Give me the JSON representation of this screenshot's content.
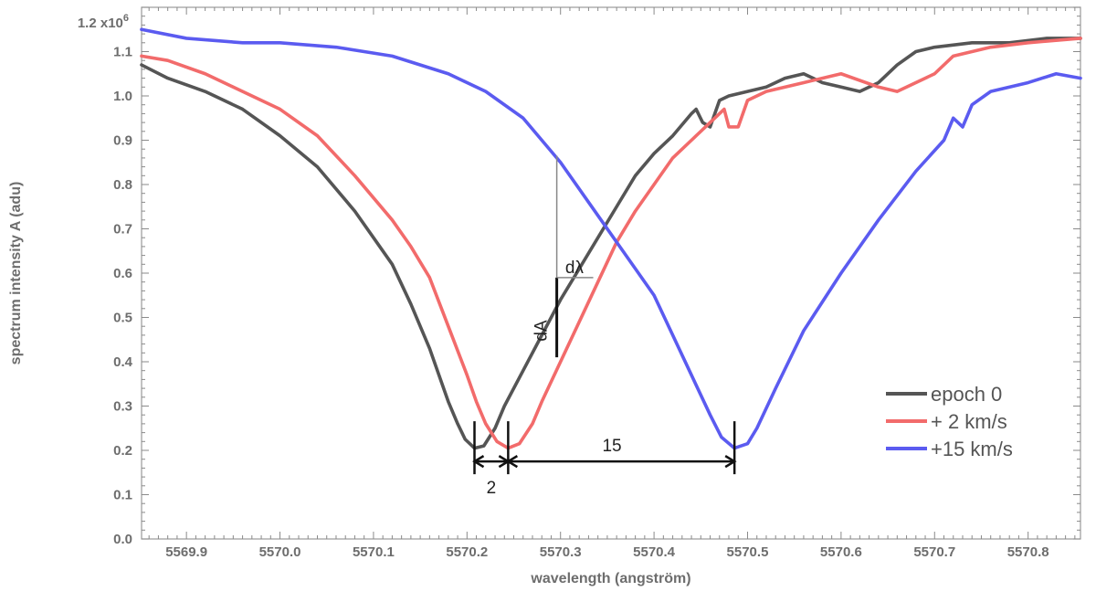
{
  "chart_data": {
    "type": "line",
    "title": "",
    "xlabel": "wavelength (angström)",
    "ylabel": "spectrum intensity A (adu)",
    "xlim": [
      5569.852,
      5570.856
    ],
    "ylim": [
      0,
      1.2
    ],
    "x_ticks": [
      5569.9,
      5570.0,
      5570.1,
      5570.2,
      5570.3,
      5570.4,
      5570.5,
      5570.6,
      5570.7,
      5570.8
    ],
    "x_tick_labels": [
      "5569.9",
      "5570.0",
      "5570.1",
      "5570.2",
      "5570.3",
      "5570.4",
      "5570.5",
      "5570.6",
      "5570.7",
      "5570.8"
    ],
    "y_ticks": [
      0,
      0.1,
      0.2,
      0.3,
      0.4,
      0.5,
      0.6,
      0.7,
      0.8,
      0.9,
      1.0,
      1.1
    ],
    "y_tick_labels": [
      "0.0",
      "0.1",
      "0.2",
      "0.3",
      "0.4",
      "0.5",
      "0.6",
      "0.7",
      "0.8",
      "0.9",
      "1.0",
      "1.1"
    ],
    "y_top_label": {
      "base": "1.2 x10",
      "exp": "6",
      "value": 1.2
    },
    "grid": false,
    "legend_position": "bottom-right",
    "series": [
      {
        "name": "epoch 0",
        "color": "#555555",
        "points": [
          [
            5569.852,
            1.07
          ],
          [
            5569.88,
            1.04
          ],
          [
            5569.92,
            1.01
          ],
          [
            5569.96,
            0.97
          ],
          [
            5570.0,
            0.91
          ],
          [
            5570.04,
            0.84
          ],
          [
            5570.08,
            0.74
          ],
          [
            5570.1,
            0.68
          ],
          [
            5570.12,
            0.62
          ],
          [
            5570.14,
            0.53
          ],
          [
            5570.16,
            0.43
          ],
          [
            5570.17,
            0.37
          ],
          [
            5570.18,
            0.31
          ],
          [
            5570.19,
            0.26
          ],
          [
            5570.198,
            0.225
          ],
          [
            5570.208,
            0.205
          ],
          [
            5570.218,
            0.21
          ],
          [
            5570.23,
            0.25
          ],
          [
            5570.24,
            0.3
          ],
          [
            5570.26,
            0.38
          ],
          [
            5570.28,
            0.46
          ],
          [
            5570.3,
            0.54
          ],
          [
            5570.32,
            0.61
          ],
          [
            5570.34,
            0.68
          ],
          [
            5570.36,
            0.75
          ],
          [
            5570.38,
            0.82
          ],
          [
            5570.4,
            0.87
          ],
          [
            5570.42,
            0.91
          ],
          [
            5570.44,
            0.96
          ],
          [
            5570.445,
            0.97
          ],
          [
            5570.452,
            0.94
          ],
          [
            5570.46,
            0.93
          ],
          [
            5570.47,
            0.99
          ],
          [
            5570.48,
            1.0
          ],
          [
            5570.5,
            1.01
          ],
          [
            5570.52,
            1.02
          ],
          [
            5570.54,
            1.04
          ],
          [
            5570.56,
            1.05
          ],
          [
            5570.58,
            1.03
          ],
          [
            5570.6,
            1.02
          ],
          [
            5570.62,
            1.01
          ],
          [
            5570.64,
            1.03
          ],
          [
            5570.66,
            1.07
          ],
          [
            5570.68,
            1.1
          ],
          [
            5570.7,
            1.11
          ],
          [
            5570.74,
            1.12
          ],
          [
            5570.78,
            1.12
          ],
          [
            5570.82,
            1.13
          ],
          [
            5570.856,
            1.13
          ]
        ]
      },
      {
        "name": "+  2 km/s",
        "color": "#f26b6b",
        "points": [
          [
            5569.852,
            1.09
          ],
          [
            5569.88,
            1.08
          ],
          [
            5569.92,
            1.05
          ],
          [
            5569.96,
            1.01
          ],
          [
            5570.0,
            0.97
          ],
          [
            5570.04,
            0.91
          ],
          [
            5570.08,
            0.82
          ],
          [
            5570.12,
            0.72
          ],
          [
            5570.14,
            0.66
          ],
          [
            5570.16,
            0.59
          ],
          [
            5570.18,
            0.48
          ],
          [
            5570.2,
            0.37
          ],
          [
            5570.21,
            0.31
          ],
          [
            5570.22,
            0.26
          ],
          [
            5570.232,
            0.22
          ],
          [
            5570.244,
            0.205
          ],
          [
            5570.256,
            0.215
          ],
          [
            5570.27,
            0.26
          ],
          [
            5570.28,
            0.31
          ],
          [
            5570.3,
            0.4
          ],
          [
            5570.32,
            0.49
          ],
          [
            5570.34,
            0.58
          ],
          [
            5570.36,
            0.67
          ],
          [
            5570.38,
            0.74
          ],
          [
            5570.4,
            0.8
          ],
          [
            5570.42,
            0.86
          ],
          [
            5570.44,
            0.9
          ],
          [
            5570.46,
            0.94
          ],
          [
            5570.475,
            0.97
          ],
          [
            5570.48,
            0.93
          ],
          [
            5570.49,
            0.93
          ],
          [
            5570.5,
            0.99
          ],
          [
            5570.52,
            1.01
          ],
          [
            5570.56,
            1.03
          ],
          [
            5570.6,
            1.05
          ],
          [
            5570.64,
            1.02
          ],
          [
            5570.66,
            1.01
          ],
          [
            5570.7,
            1.05
          ],
          [
            5570.72,
            1.09
          ],
          [
            5570.76,
            1.11
          ],
          [
            5570.8,
            1.12
          ],
          [
            5570.856,
            1.13
          ]
        ]
      },
      {
        "name": "+15 km/s",
        "color": "#5b5bf0",
        "points": [
          [
            5569.852,
            1.15
          ],
          [
            5569.9,
            1.13
          ],
          [
            5569.96,
            1.12
          ],
          [
            5570.0,
            1.12
          ],
          [
            5570.06,
            1.11
          ],
          [
            5570.12,
            1.09
          ],
          [
            5570.18,
            1.05
          ],
          [
            5570.22,
            1.01
          ],
          [
            5570.26,
            0.95
          ],
          [
            5570.3,
            0.85
          ],
          [
            5570.34,
            0.73
          ],
          [
            5570.38,
            0.61
          ],
          [
            5570.4,
            0.55
          ],
          [
            5570.42,
            0.46
          ],
          [
            5570.44,
            0.37
          ],
          [
            5570.46,
            0.28
          ],
          [
            5570.472,
            0.23
          ],
          [
            5570.486,
            0.205
          ],
          [
            5570.5,
            0.215
          ],
          [
            5570.51,
            0.25
          ],
          [
            5570.53,
            0.34
          ],
          [
            5570.56,
            0.47
          ],
          [
            5570.6,
            0.6
          ],
          [
            5570.64,
            0.72
          ],
          [
            5570.68,
            0.83
          ],
          [
            5570.71,
            0.9
          ],
          [
            5570.72,
            0.95
          ],
          [
            5570.73,
            0.93
          ],
          [
            5570.74,
            0.98
          ],
          [
            5570.76,
            1.01
          ],
          [
            5570.8,
            1.03
          ],
          [
            5570.83,
            1.05
          ],
          [
            5570.856,
            1.04
          ]
        ]
      }
    ],
    "annotations": [
      {
        "text": "2",
        "x_from": 5570.208,
        "x_to": 5570.244,
        "y": 0.175,
        "label_x": 5570.226,
        "label_y": 0.115
      },
      {
        "text": "15",
        "x_from": 5570.244,
        "x_to": 5570.486,
        "y": 0.175,
        "label_x": 5570.355,
        "label_y": 0.21
      },
      {
        "text": "dA",
        "x": 5570.296,
        "y_from": 0.41,
        "y_to": 0.59,
        "label_x": 5570.285,
        "label_y": 0.47
      },
      {
        "text": "dλ",
        "x_from": 5570.296,
        "x_to": 5570.335,
        "y": 0.59,
        "label_x": 5570.305,
        "label_y": 0.6
      },
      {
        "text": "",
        "x": 5570.296,
        "y_from": 0.59,
        "y_to": 0.865
      }
    ]
  }
}
